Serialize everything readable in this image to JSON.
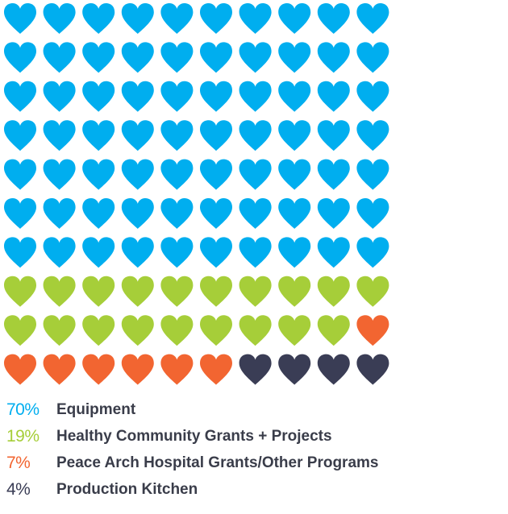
{
  "chart_data": {
    "type": "waffle",
    "total_units": 100,
    "grid": {
      "columns": 10,
      "rows": 10
    },
    "series": [
      {
        "name": "Equipment",
        "percent_label": "70%",
        "value": 70,
        "color": "#00aeef"
      },
      {
        "name": "Healthy Community Grants + Projects",
        "percent_label": "19%",
        "value": 19,
        "color": "#a6ce39"
      },
      {
        "name": "Peace Arch Hospital Grants/Other Programs",
        "percent_label": "7%",
        "value": 7,
        "color": "#f26531"
      },
      {
        "name": "Production Kitchen",
        "percent_label": "4%",
        "value": 4,
        "color": "#3a3d55"
      }
    ],
    "legend_placement": "bottom-left",
    "icon": "heart-icon"
  }
}
